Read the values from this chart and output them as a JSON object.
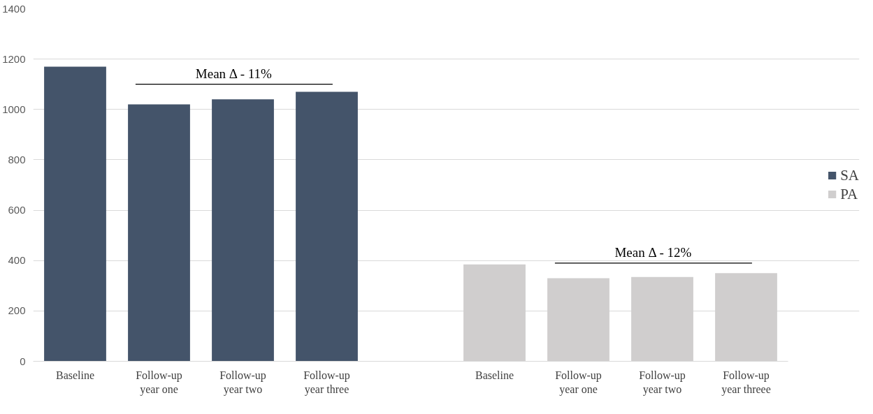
{
  "chart_data": {
    "type": "bar",
    "categories": [
      "Baseline",
      "Follow-up year one",
      "Follow-up year two",
      "Follow-up year three",
      null,
      "Baseline",
      "Follow-up year one",
      "Follow-up year two",
      "Follow-up year threee"
    ],
    "series": [
      {
        "name": "SA",
        "color": "#44546a",
        "values": [
          1170,
          1020,
          1040,
          1070,
          null,
          null,
          null,
          null,
          null
        ]
      },
      {
        "name": "PA",
        "color": "#d0cece",
        "values": [
          null,
          null,
          null,
          null,
          null,
          385,
          330,
          335,
          350
        ]
      }
    ],
    "ref_lines": [
      {
        "axis": "y",
        "value": 1100,
        "label": "Mean Δ - 11%"
      },
      {
        "axis": "y",
        "value": 390,
        "label": "Mean Δ - 12%"
      }
    ],
    "ylim": [
      0,
      1400
    ],
    "yticks": [
      0,
      200,
      400,
      600,
      800,
      1000,
      1200,
      1400
    ],
    "grid": "y",
    "legend": "right"
  }
}
